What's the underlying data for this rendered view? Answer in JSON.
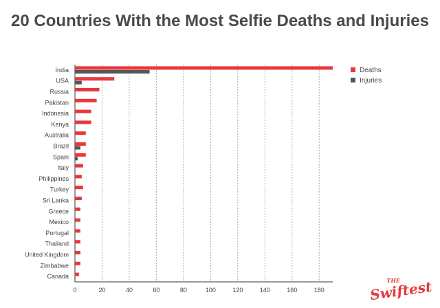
{
  "title": "20 Countries With the Most Selfie Deaths and Injuries",
  "logo": {
    "small": "THE",
    "brand": "Swiftest"
  },
  "colors": {
    "deaths": "#e8373b",
    "injuries": "#555555",
    "grid": "#999999",
    "title": "#4a4a4a"
  },
  "chart_data": {
    "type": "bar",
    "orientation": "horizontal",
    "title": "20 Countries With the Most Selfie Deaths and Injuries",
    "categories": [
      "India",
      "USA",
      "Russia",
      "Pakistan",
      "Indonesia",
      "Kenya",
      "Australia",
      "Brazil",
      "Spain",
      "Italy",
      "Philippines",
      "Turkey",
      "Sri Lanka",
      "Greece",
      "Mexico",
      "Portugal",
      "Thailand",
      "United Kingdom",
      "Zimbabwe",
      "Canada"
    ],
    "series": [
      {
        "name": "Deaths",
        "values": [
          190,
          29,
          18,
          16,
          12,
          12,
          8,
          8,
          8,
          6,
          5,
          6,
          5,
          4,
          4,
          4,
          4,
          4,
          4,
          3
        ]
      },
      {
        "name": "Injuries",
        "values": [
          55,
          5,
          0,
          0,
          0,
          0,
          0,
          4,
          2,
          0,
          0,
          0,
          0,
          0,
          0,
          0,
          0,
          0,
          0,
          0
        ]
      }
    ],
    "xlim": [
      0,
      190
    ],
    "xticks": [
      0,
      20,
      40,
      60,
      80,
      100,
      120,
      140,
      160,
      180
    ],
    "grid": "vertical dashed",
    "legend": "top-right"
  }
}
